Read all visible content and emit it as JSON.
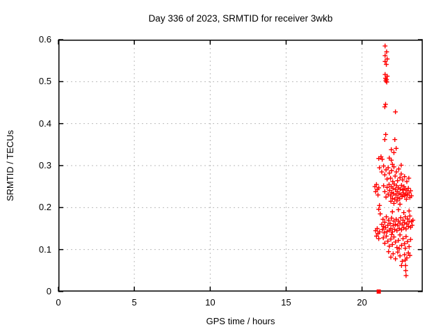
{
  "chart_data": {
    "type": "scatter",
    "title": "Day 336 of 2023, SRMTID for receiver 3wkb",
    "xlabel": "GPS time / hours",
    "ylabel": "SRMTID / TECUs",
    "xlim": [
      0,
      24
    ],
    "ylim": [
      0,
      0.6
    ],
    "grid": true,
    "legend": "none",
    "background_color": "#ffffff",
    "border_color": "#000000",
    "grid_color": "#bbbbbb",
    "accent_color": "#ff0000",
    "xticks": {
      "values": [
        0,
        5,
        10,
        15,
        20
      ],
      "labels": [
        "0",
        "5",
        "10",
        "15",
        "20"
      ]
    },
    "yticks": {
      "values": [
        0,
        0.1,
        0.2,
        0.3,
        0.4,
        0.5,
        0.6
      ],
      "labels": [
        "0",
        "0.1",
        "0.2",
        "0.3",
        "0.4",
        "0.5",
        "0.6"
      ]
    },
    "series": [
      {
        "name": "srmtid-scatter",
        "marker": "plus",
        "color": "#ff0000",
        "points": [
          [
            21.52,
            0.585
          ],
          [
            21.62,
            0.571
          ],
          [
            21.52,
            0.562
          ],
          [
            21.66,
            0.554
          ],
          [
            21.52,
            0.548
          ],
          [
            21.6,
            0.541
          ],
          [
            21.52,
            0.517
          ],
          [
            21.66,
            0.513
          ],
          [
            21.55,
            0.508
          ],
          [
            21.61,
            0.505
          ],
          [
            21.57,
            0.502
          ],
          [
            21.63,
            0.499
          ],
          [
            21.55,
            0.446
          ],
          [
            21.5,
            0.44
          ],
          [
            22.2,
            0.428
          ],
          [
            21.56,
            0.374
          ],
          [
            21.5,
            0.362
          ],
          [
            22.16,
            0.362
          ],
          [
            21.93,
            0.338
          ],
          [
            22.25,
            0.341
          ],
          [
            22.1,
            0.331
          ],
          [
            21.25,
            0.321
          ],
          [
            21.1,
            0.317
          ],
          [
            21.33,
            0.315
          ],
          [
            21.8,
            0.318
          ],
          [
            21.93,
            0.313
          ],
          [
            22.0,
            0.303
          ],
          [
            22.58,
            0.301
          ],
          [
            21.15,
            0.295
          ],
          [
            21.3,
            0.285
          ],
          [
            21.42,
            0.299
          ],
          [
            21.5,
            0.278
          ],
          [
            21.58,
            0.29
          ],
          [
            21.65,
            0.268
          ],
          [
            21.72,
            0.295
          ],
          [
            21.8,
            0.282
          ],
          [
            21.88,
            0.27
          ],
          [
            21.95,
            0.288
          ],
          [
            22.02,
            0.262
          ],
          [
            22.1,
            0.297
          ],
          [
            22.18,
            0.275
          ],
          [
            22.26,
            0.285
          ],
          [
            22.34,
            0.264
          ],
          [
            22.42,
            0.292
          ],
          [
            22.5,
            0.271
          ],
          [
            22.58,
            0.28
          ],
          [
            22.68,
            0.266
          ],
          [
            22.8,
            0.274
          ],
          [
            22.95,
            0.262
          ],
          [
            23.08,
            0.27
          ],
          [
            21.42,
            0.252
          ],
          [
            21.5,
            0.238
          ],
          [
            21.58,
            0.225
          ],
          [
            21.65,
            0.248
          ],
          [
            21.72,
            0.232
          ],
          [
            21.78,
            0.255
          ],
          [
            21.82,
            0.241
          ],
          [
            21.88,
            0.228
          ],
          [
            21.92,
            0.25
          ],
          [
            21.96,
            0.236
          ],
          [
            22.0,
            0.222
          ],
          [
            22.04,
            0.246
          ],
          [
            22.08,
            0.233
          ],
          [
            22.12,
            0.256
          ],
          [
            22.16,
            0.22
          ],
          [
            22.2,
            0.243
          ],
          [
            22.24,
            0.23
          ],
          [
            22.28,
            0.252
          ],
          [
            22.32,
            0.238
          ],
          [
            22.36,
            0.224
          ],
          [
            22.4,
            0.247
          ],
          [
            22.44,
            0.234
          ],
          [
            22.48,
            0.221
          ],
          [
            22.52,
            0.244
          ],
          [
            22.56,
            0.231
          ],
          [
            22.6,
            0.253
          ],
          [
            22.64,
            0.226
          ],
          [
            22.68,
            0.242
          ],
          [
            22.72,
            0.235
          ],
          [
            22.76,
            0.25
          ],
          [
            22.8,
            0.228
          ],
          [
            22.84,
            0.244
          ],
          [
            22.88,
            0.232
          ],
          [
            22.92,
            0.22
          ],
          [
            22.96,
            0.24
          ],
          [
            23.0,
            0.23
          ],
          [
            23.05,
            0.246
          ],
          [
            23.1,
            0.235
          ],
          [
            23.15,
            0.224
          ],
          [
            23.2,
            0.24
          ],
          [
            23.25,
            0.228
          ],
          [
            21.9,
            0.215
          ],
          [
            22.1,
            0.21
          ],
          [
            22.3,
            0.216
          ],
          [
            22.5,
            0.208
          ],
          [
            20.85,
            0.25
          ],
          [
            20.9,
            0.238
          ],
          [
            20.95,
            0.255
          ],
          [
            21.0,
            0.243
          ],
          [
            21.05,
            0.23
          ],
          [
            21.1,
            0.247
          ],
          [
            20.9,
            0.145
          ],
          [
            20.95,
            0.132
          ],
          [
            21.0,
            0.15
          ],
          [
            21.05,
            0.138
          ],
          [
            21.1,
            0.126
          ],
          [
            21.15,
            0.142
          ],
          [
            21.1,
            0.196
          ],
          [
            21.2,
            0.185
          ],
          [
            21.15,
            0.205
          ],
          [
            21.3,
            0.16
          ],
          [
            21.35,
            0.148
          ],
          [
            21.38,
            0.172
          ],
          [
            21.42,
            0.155
          ],
          [
            21.46,
            0.14
          ],
          [
            21.5,
            0.165
          ],
          [
            21.55,
            0.152
          ],
          [
            21.6,
            0.178
          ],
          [
            21.65,
            0.143
          ],
          [
            21.7,
            0.158
          ],
          [
            21.75,
            0.17
          ],
          [
            21.8,
            0.146
          ],
          [
            21.85,
            0.162
          ],
          [
            21.9,
            0.15
          ],
          [
            21.95,
            0.175
          ],
          [
            22.0,
            0.142
          ],
          [
            22.05,
            0.157
          ],
          [
            22.1,
            0.168
          ],
          [
            22.15,
            0.148
          ],
          [
            22.2,
            0.16
          ],
          [
            22.25,
            0.172
          ],
          [
            22.3,
            0.145
          ],
          [
            22.35,
            0.158
          ],
          [
            22.4,
            0.168
          ],
          [
            22.45,
            0.15
          ],
          [
            22.5,
            0.163
          ],
          [
            22.55,
            0.176
          ],
          [
            22.6,
            0.147
          ],
          [
            22.65,
            0.159
          ],
          [
            22.7,
            0.17
          ],
          [
            22.75,
            0.152
          ],
          [
            22.8,
            0.164
          ],
          [
            22.85,
            0.178
          ],
          [
            22.9,
            0.149
          ],
          [
            22.95,
            0.161
          ],
          [
            23.0,
            0.173
          ],
          [
            23.05,
            0.155
          ],
          [
            23.1,
            0.166
          ],
          [
            23.15,
            0.18
          ],
          [
            23.2,
            0.153
          ],
          [
            23.25,
            0.167
          ],
          [
            23.3,
            0.158
          ],
          [
            23.35,
            0.17
          ],
          [
            22.0,
            0.19
          ],
          [
            22.4,
            0.195
          ],
          [
            22.75,
            0.188
          ],
          [
            23.1,
            0.192
          ],
          [
            21.4,
            0.128
          ],
          [
            21.5,
            0.115
          ],
          [
            21.6,
            0.132
          ],
          [
            21.7,
            0.12
          ],
          [
            21.8,
            0.108
          ],
          [
            21.9,
            0.125
          ],
          [
            22.0,
            0.112
          ],
          [
            22.1,
            0.13
          ],
          [
            22.2,
            0.118
          ],
          [
            22.3,
            0.105
          ],
          [
            22.4,
            0.122
          ],
          [
            22.5,
            0.135
          ],
          [
            22.6,
            0.11
          ],
          [
            22.7,
            0.126
          ],
          [
            22.8,
            0.114
          ],
          [
            22.9,
            0.131
          ],
          [
            23.0,
            0.119
          ],
          [
            23.1,
            0.107
          ],
          [
            23.2,
            0.124
          ],
          [
            22.45,
            0.102
          ],
          [
            21.95,
            0.136
          ],
          [
            22.85,
            0.103
          ],
          [
            21.75,
            0.095
          ],
          [
            21.9,
            0.082
          ],
          [
            22.05,
            0.09
          ],
          [
            22.2,
            0.078
          ],
          [
            22.35,
            0.094
          ],
          [
            22.5,
            0.085
          ],
          [
            22.65,
            0.072
          ],
          [
            22.8,
            0.088
          ],
          [
            22.95,
            0.08
          ],
          [
            23.05,
            0.092
          ],
          [
            22.6,
            0.062
          ],
          [
            23.15,
            0.086
          ],
          [
            22.85,
            0.075
          ],
          [
            22.87,
            0.062
          ],
          [
            22.88,
            0.05
          ],
          [
            22.9,
            0.038
          ]
        ]
      },
      {
        "name": "zero-marker",
        "marker": "filled-square",
        "color": "#ff0000",
        "points": [
          [
            21.1,
            0.0
          ]
        ]
      }
    ]
  }
}
